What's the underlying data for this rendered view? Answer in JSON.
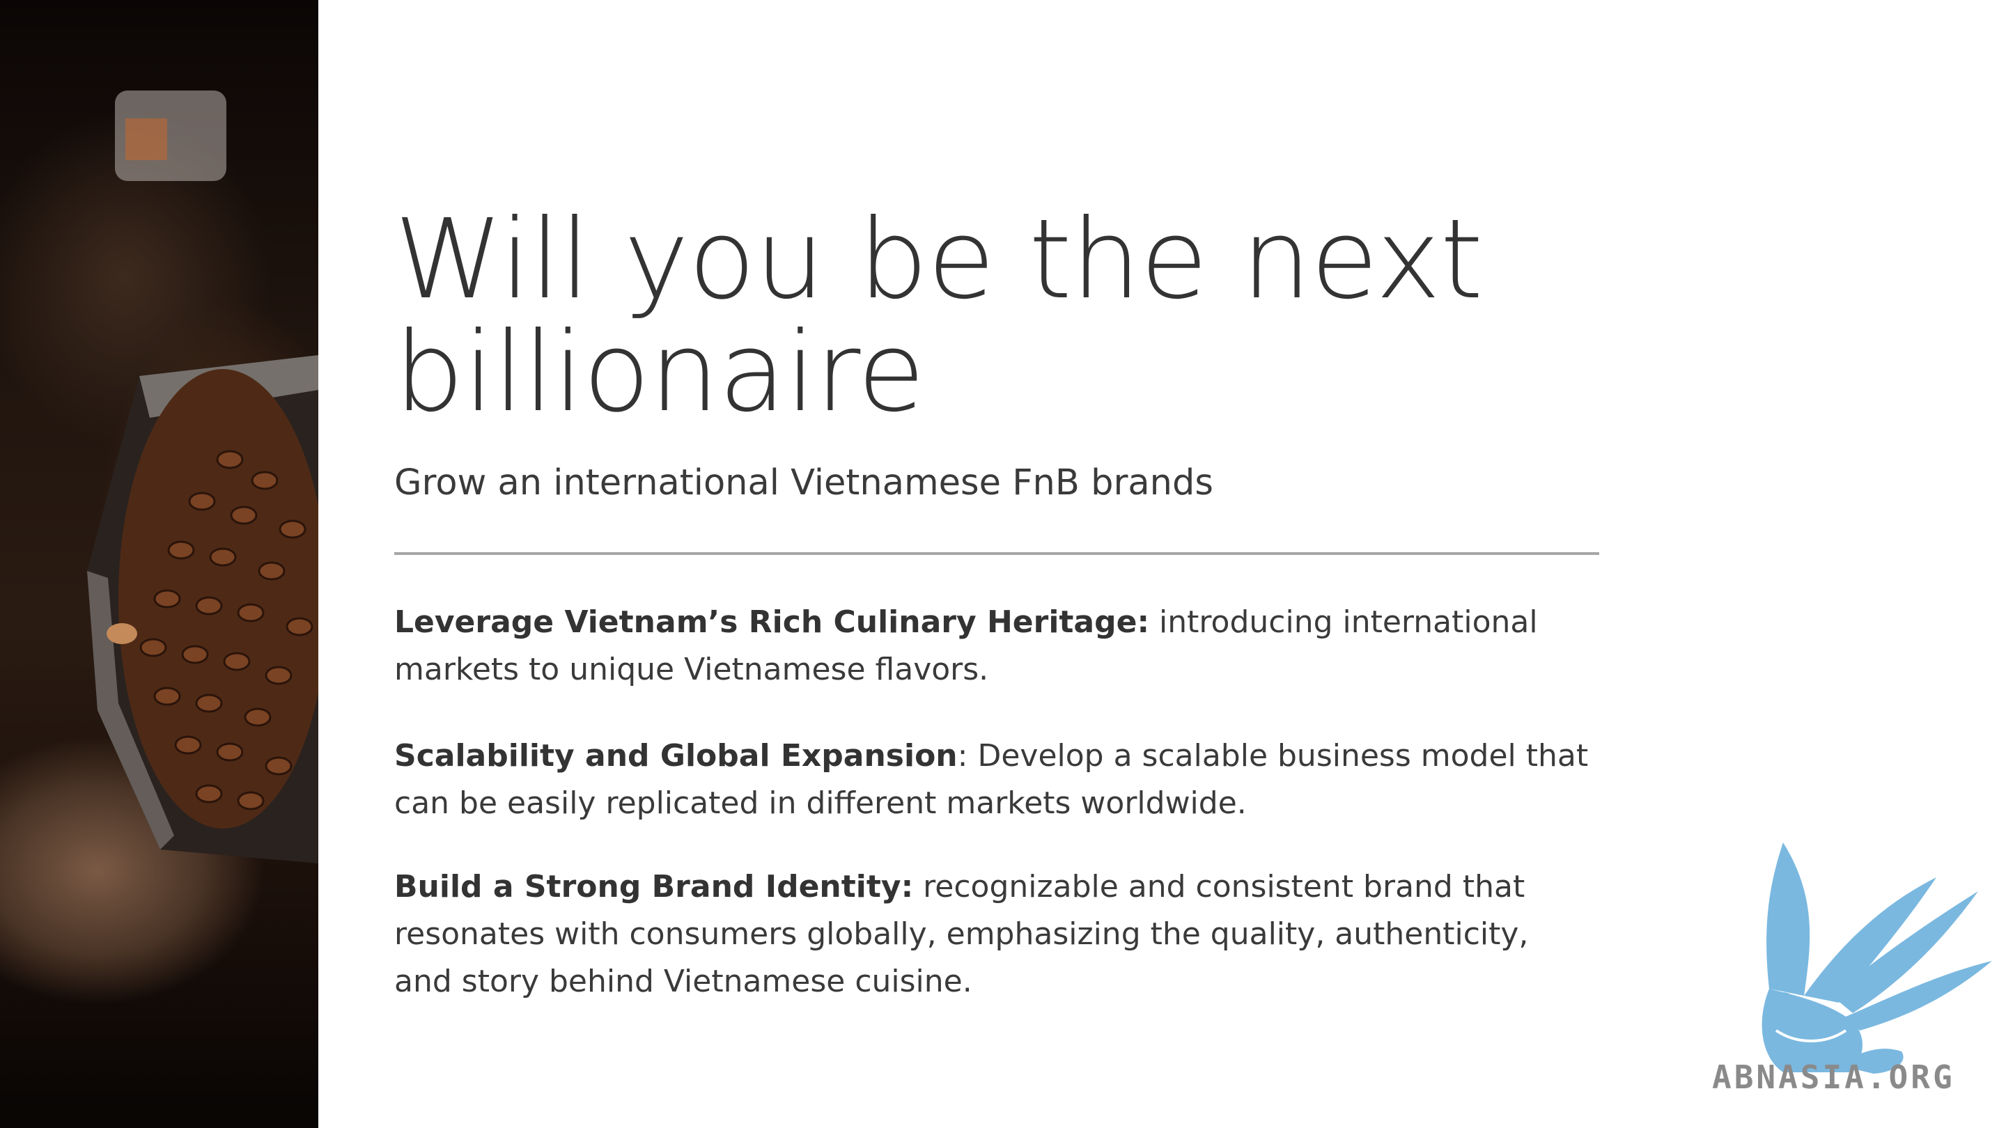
{
  "slide": {
    "title": "Will you be the next billionaire",
    "subtitle": "Grow an international Vietnamese FnB brands",
    "points": [
      {
        "heading": "Leverage Vietnam’s Rich Culinary Heritage:",
        "text": " introducing international markets to unique Vietnamese flavors."
      },
      {
        "heading": "Scalability and Global Expansion",
        "text": ": Develop a scalable business model that can be easily replicated in different markets worldwide."
      },
      {
        "heading": "Build a Strong Brand Identity:",
        "text": " recognizable and consistent brand that resonates with consumers globally, emphasizing the quality, authenticity, and story behind Vietnamese cuisine."
      }
    ]
  },
  "watermark": {
    "text": "ABNASIA.ORG",
    "icon": "griffin-logo-icon",
    "color": "#7ab8e0"
  },
  "image": {
    "icon": "coffee-beans-photo"
  }
}
